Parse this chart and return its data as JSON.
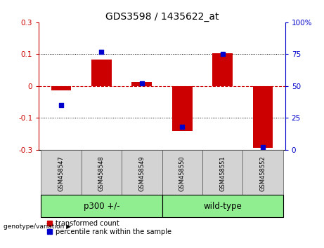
{
  "title": "GDS3598 / 1435622_at",
  "samples": [
    "GSM458547",
    "GSM458548",
    "GSM458549",
    "GSM458550",
    "GSM458551",
    "GSM458552"
  ],
  "groups": [
    {
      "name": "p300 +/-",
      "indices": [
        0,
        1,
        2
      ]
    },
    {
      "name": "wild-type",
      "indices": [
        3,
        4,
        5
      ]
    }
  ],
  "bar_values": [
    -0.02,
    0.125,
    0.02,
    -0.21,
    0.155,
    -0.29
  ],
  "percentile_values": [
    35,
    77,
    52,
    18,
    75,
    2
  ],
  "bar_color": "#cc0000",
  "dot_color": "#0000cc",
  "ylim_left": [
    -0.3,
    0.3
  ],
  "ylim_right": [
    0,
    100
  ],
  "yticks_left": [
    -0.3,
    -0.15,
    0,
    0.15,
    0.3
  ],
  "yticks_right": [
    0,
    25,
    50,
    75,
    100
  ],
  "hline_color": "#cc0000",
  "dotted_lines": [
    -0.15,
    0.15
  ],
  "group_label": "genotype/variation",
  "legend_bar": "transformed count",
  "legend_dot": "percentile rank within the sample",
  "bar_width": 0.5,
  "sample_bg_color": "#d3d3d3",
  "group_bg_color": "#90ee90",
  "left_axis_color": "#cc0000",
  "right_axis_color": "#0000cc",
  "bg_color": "#ffffff"
}
